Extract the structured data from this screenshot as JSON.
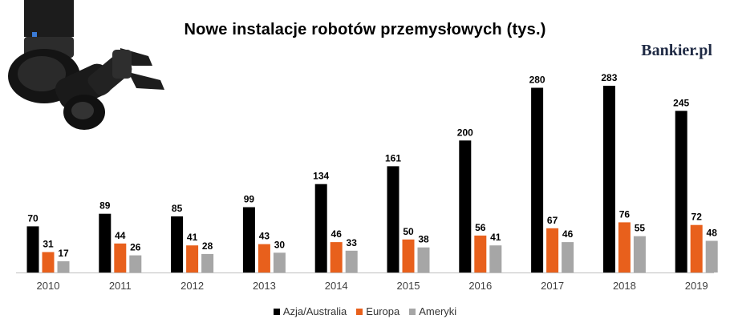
{
  "title": "Nowe instalacje robotów przemysłowych (tys.)",
  "brand": "Bankier.pl",
  "chart_data": {
    "type": "bar",
    "title": "Nowe instalacje robotów przemysłowych (tys.)",
    "xlabel": "",
    "ylabel": "",
    "categories": [
      "2010",
      "2011",
      "2012",
      "2013",
      "2014",
      "2015",
      "2016",
      "2017",
      "2018",
      "2019"
    ],
    "series": [
      {
        "name": "Azja/Australia",
        "color": "#000000",
        "values": [
          70,
          89,
          85,
          99,
          134,
          161,
          200,
          280,
          283,
          245
        ]
      },
      {
        "name": "Europa",
        "color": "#e8601c",
        "values": [
          31,
          44,
          41,
          43,
          46,
          50,
          56,
          67,
          76,
          72
        ]
      },
      {
        "name": "Ameryki",
        "color": "#a6a6a6",
        "values": [
          17,
          26,
          28,
          30,
          33,
          38,
          41,
          46,
          55,
          48
        ]
      }
    ],
    "ylim": [
      0,
      300
    ],
    "grid": false,
    "legend": "bottom",
    "data_labels": true
  }
}
